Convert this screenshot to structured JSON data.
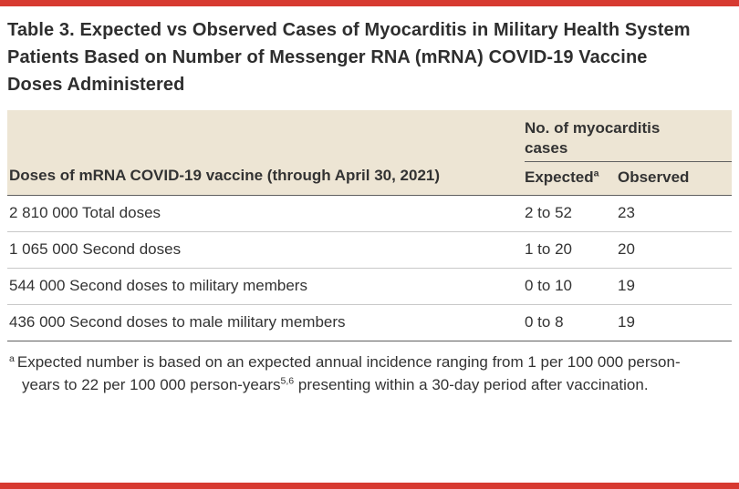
{
  "accent_color": "#d73a31",
  "header_bg": "#ede5d4",
  "title": "Table 3. Expected vs Observed Cases of Myocarditis in Military Health System Patients Based on Number of Messenger RNA (mRNA) COVID-19 Vaccine Doses Administered",
  "table": {
    "doses_header": "Doses of mRNA COVID-19 vaccine (through April 30, 2021)",
    "group_header": "No. of myocarditis cases",
    "expected_label": "Expected",
    "expected_footnote_marker": "a",
    "observed_label": "Observed",
    "rows": [
      {
        "doses": "2 810 000 Total doses",
        "expected": "2 to 52",
        "observed": "23"
      },
      {
        "doses": "1 065 000 Second doses",
        "expected": "1 to 20",
        "observed": "20"
      },
      {
        "doses": "544 000 Second doses to military members",
        "expected": "0 to 10",
        "observed": "19"
      },
      {
        "doses": "436 000 Second doses to male military members",
        "expected": "0 to 8",
        "observed": "19"
      }
    ]
  },
  "footnote": {
    "marker": "a",
    "part1": "Expected number is based on an expected annual incidence ranging from 1 per 100 000 person-years to 22 per 100 000 person-years",
    "reference_sup": "5,6",
    "part2": " presenting within a 30-day period after vaccination."
  }
}
